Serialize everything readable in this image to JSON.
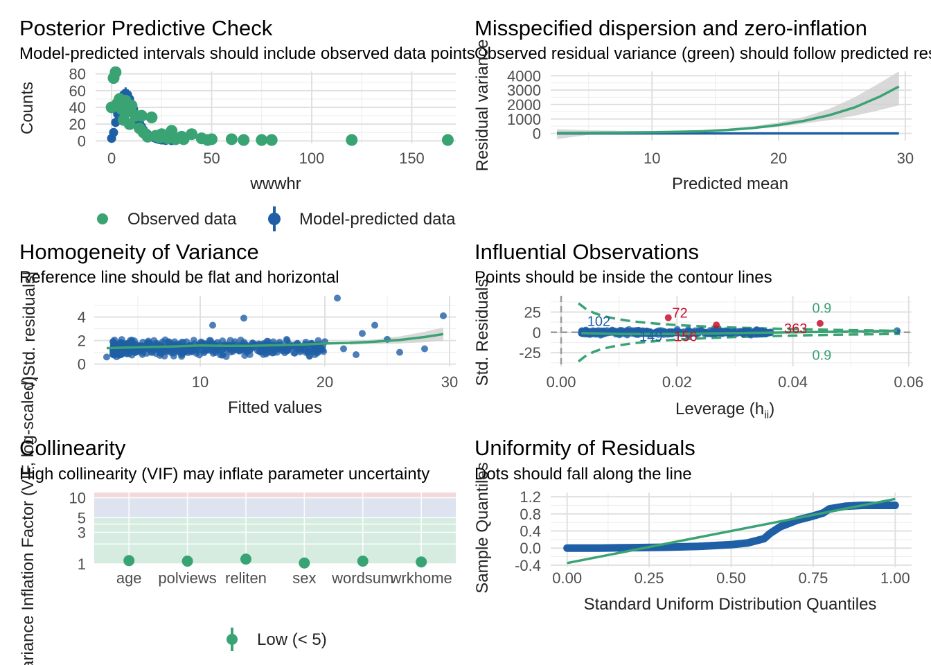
{
  "colors": {
    "observed": "#3aa374",
    "predicted": "#1f5fa6",
    "smooth": "#3aa374",
    "influential": "#c8102e",
    "ribbon": "#cfcfcf",
    "low_band": "#d6ece1",
    "mid_band": "#dde3ef",
    "high_band": "#f4d9dc"
  },
  "chart_data": [
    {
      "type": "scatter",
      "title": "Posterior Predictive Check",
      "subtitle": "Model-predicted intervals should include observed data points",
      "xlabel": "wwwhr",
      "ylabel": "Counts",
      "xlim": [
        -8,
        172
      ],
      "ylim": [
        -3,
        83
      ],
      "xticks": [
        0,
        50,
        100,
        150
      ],
      "yticks": [
        0,
        20,
        40,
        60,
        80
      ],
      "legend": {
        "position": "bottom",
        "observed": "Observed data",
        "predicted": "Model-predicted data"
      },
      "observed": [
        {
          "x": 0,
          "y": 40
        },
        {
          "x": 1,
          "y": 75
        },
        {
          "x": 2,
          "y": 82
        },
        {
          "x": 3,
          "y": 45
        },
        {
          "x": 4,
          "y": 50
        },
        {
          "x": 5,
          "y": 38
        },
        {
          "x": 6,
          "y": 25
        },
        {
          "x": 7,
          "y": 48
        },
        {
          "x": 8,
          "y": 35
        },
        {
          "x": 9,
          "y": 20
        },
        {
          "x": 10,
          "y": 42
        },
        {
          "x": 12,
          "y": 30
        },
        {
          "x": 14,
          "y": 15
        },
        {
          "x": 15,
          "y": 30
        },
        {
          "x": 16,
          "y": 10
        },
        {
          "x": 18,
          "y": 5
        },
        {
          "x": 20,
          "y": 28
        },
        {
          "x": 22,
          "y": 6
        },
        {
          "x": 24,
          "y": 4
        },
        {
          "x": 25,
          "y": 8
        },
        {
          "x": 28,
          "y": 3
        },
        {
          "x": 30,
          "y": 12
        },
        {
          "x": 32,
          "y": 2
        },
        {
          "x": 35,
          "y": 5
        },
        {
          "x": 36,
          "y": 2
        },
        {
          "x": 40,
          "y": 8
        },
        {
          "x": 45,
          "y": 3
        },
        {
          "x": 48,
          "y": 1
        },
        {
          "x": 50,
          "y": 2
        },
        {
          "x": 60,
          "y": 2
        },
        {
          "x": 66,
          "y": 1
        },
        {
          "x": 75,
          "y": 1
        },
        {
          "x": 80,
          "y": 1
        },
        {
          "x": 120,
          "y": 1
        },
        {
          "x": 168,
          "y": 1
        }
      ],
      "predicted": [
        {
          "x": 0,
          "y": 3
        },
        {
          "x": 1,
          "y": 10
        },
        {
          "x": 2,
          "y": 22
        },
        {
          "x": 3,
          "y": 32
        },
        {
          "x": 4,
          "y": 42
        },
        {
          "x": 5,
          "y": 50
        },
        {
          "x": 6,
          "y": 55
        },
        {
          "x": 7,
          "y": 57
        },
        {
          "x": 8,
          "y": 55
        },
        {
          "x": 9,
          "y": 50
        },
        {
          "x": 10,
          "y": 44
        },
        {
          "x": 11,
          "y": 38
        },
        {
          "x": 12,
          "y": 32
        },
        {
          "x": 13,
          "y": 26
        },
        {
          "x": 14,
          "y": 21
        },
        {
          "x": 15,
          "y": 17
        },
        {
          "x": 16,
          "y": 13
        },
        {
          "x": 17,
          "y": 10
        },
        {
          "x": 18,
          "y": 8
        },
        {
          "x": 19,
          "y": 6
        },
        {
          "x": 20,
          "y": 5
        },
        {
          "x": 21,
          "y": 4
        },
        {
          "x": 22,
          "y": 3
        },
        {
          "x": 23,
          "y": 2
        },
        {
          "x": 24,
          "y": 1.5
        },
        {
          "x": 25,
          "y": 1
        },
        {
          "x": 27,
          "y": 0.5
        },
        {
          "x": 30,
          "y": 0.3
        }
      ]
    },
    {
      "type": "line",
      "title": "Misspecified dispersion and zero-inflation",
      "subtitle": "Observed residual variance (green) should follow predicted residual variance (blue)",
      "xlabel": "Predicted mean",
      "ylabel": "Residual variance",
      "xlim": [
        2,
        30.5
      ],
      "ylim": [
        -500,
        4300
      ],
      "xticks": [
        10,
        20,
        30
      ],
      "yticks": [
        0,
        1000,
        2000,
        3000,
        4000
      ],
      "series": [
        {
          "role": "observed",
          "x": [
            2.5,
            5,
            8,
            10,
            12,
            14,
            16,
            18,
            20,
            22,
            24,
            26,
            28,
            29.5
          ],
          "y": [
            30,
            40,
            60,
            80,
            110,
            150,
            240,
            380,
            580,
            870,
            1260,
            1800,
            2560,
            3250
          ]
        },
        {
          "role": "predicted",
          "x": [
            2.5,
            29.5
          ],
          "y": [
            0,
            0
          ]
        }
      ],
      "ribbon": {
        "x": [
          2.5,
          5,
          8,
          10,
          12,
          14,
          16,
          18,
          20,
          22,
          24,
          26,
          28,
          29.5
        ],
        "lower": [
          -400,
          -100,
          0,
          30,
          60,
          100,
          180,
          300,
          460,
          680,
          920,
          1220,
          1620,
          1950
        ],
        "upper": [
          300,
          220,
          180,
          160,
          180,
          240,
          340,
          500,
          760,
          1140,
          1700,
          2500,
          3500,
          4300
        ]
      }
    },
    {
      "type": "scatter",
      "title": "Homogeneity of Variance",
      "subtitle": "Reference line should be flat and horizontal",
      "xlabel": "Fitted values",
      "ylabel": "√|Std. residuals|",
      "xlim": [
        1.5,
        30.5
      ],
      "ylim": [
        -0.2,
        5.8
      ],
      "xticks": [
        10,
        20,
        30
      ],
      "yticks": [
        0,
        2,
        4
      ],
      "smooth": {
        "x": [
          2.5,
          4,
          6,
          8,
          10,
          12,
          14,
          16,
          18,
          20,
          22,
          24,
          26,
          28,
          29.5
        ],
        "y": [
          1.35,
          1.4,
          1.45,
          1.5,
          1.58,
          1.55,
          1.55,
          1.6,
          1.65,
          1.75,
          1.8,
          1.9,
          2.05,
          2.3,
          2.55
        ]
      },
      "smooth_band_upper": {
        "x": [
          22,
          24,
          26,
          28,
          29.5
        ],
        "y": [
          1.95,
          2.1,
          2.35,
          2.75,
          3.1
        ]
      },
      "smooth_band_lower": {
        "x": [
          22,
          24,
          26,
          28,
          29.5
        ],
        "y": [
          1.65,
          1.7,
          1.75,
          1.85,
          2.0
        ]
      },
      "highlight_points": [
        {
          "x": 29.5,
          "y": 4.1
        },
        {
          "x": 21,
          "y": 5.6
        },
        {
          "x": 24,
          "y": 3.3
        },
        {
          "x": 13.5,
          "y": 3.9
        },
        {
          "x": 11,
          "y": 3.3
        },
        {
          "x": 25,
          "y": 2.1
        },
        {
          "x": 26,
          "y": 1.0
        },
        {
          "x": 22.5,
          "y": 0.8
        },
        {
          "x": 21.5,
          "y": 1.3
        },
        {
          "x": 2.5,
          "y": 0.6
        },
        {
          "x": 28,
          "y": 1.3
        },
        {
          "x": 23,
          "y": 2.6
        },
        {
          "x": 20,
          "y": 1.9
        }
      ]
    },
    {
      "type": "scatter",
      "title": "Influential Observations",
      "subtitle": "Points should be inside the contour lines",
      "xlabel": "Leverage (hii)",
      "ylabel": "Std. Residuals",
      "xlim": [
        -0.0018,
        0.0605
      ],
      "ylim": [
        -42,
        45
      ],
      "xticks": [
        "0.00",
        "0.02",
        "0.04",
        "0.06"
      ],
      "xtick_values": [
        0,
        0.02,
        0.04,
        0.06
      ],
      "yticks": [
        "-25",
        "0",
        "25"
      ],
      "ytick_values": [
        -25,
        0,
        25
      ],
      "contour_label": "0.9",
      "labels": [
        {
          "text": "72",
          "x": 0.0205,
          "y": 24,
          "influential": true
        },
        {
          "text": "102",
          "x": 0.0065,
          "y": 14,
          "influential": false
        },
        {
          "text": "149",
          "x": 0.0155,
          "y": -5,
          "influential": false
        },
        {
          "text": "156",
          "x": 0.0215,
          "y": -5,
          "influential": true
        },
        {
          "text": "363",
          "x": 0.0405,
          "y": 5,
          "influential": true
        }
      ],
      "influential_points": [
        {
          "x": 0.0185,
          "y": 18
        },
        {
          "x": 0.0268,
          "y": 9
        },
        {
          "x": 0.0447,
          "y": 11
        }
      ],
      "smooth": {
        "x": [
          0.0035,
          0.01,
          0.02,
          0.03,
          0.04,
          0.05,
          0.058
        ],
        "y": [
          -1,
          -2,
          -2,
          -1,
          0,
          1,
          2
        ]
      }
    },
    {
      "type": "scatter",
      "title": "Collinearity",
      "subtitle": "High collinearity (VIF) may inflate parameter uncertainty",
      "xlabel": "",
      "ylabel": "Variance Inflation Factor (VIF, log-scaled)",
      "categories": [
        "age",
        "polviews",
        "reliten",
        "sex",
        "wordsum",
        "wrkhome"
      ],
      "values": [
        1.12,
        1.1,
        1.18,
        1.03,
        1.1,
        1.07
      ],
      "ylim_log": [
        1,
        12
      ],
      "yticks": [
        1,
        3,
        5,
        10
      ],
      "ytick_labels": [
        "1",
        "3",
        "5",
        "10"
      ],
      "extra_ticks": [
        2,
        4
      ],
      "legend": {
        "position": "bottom",
        "label": "Low (< 5)"
      }
    },
    {
      "type": "line",
      "title": "Uniformity of Residuals",
      "subtitle": "Dots should fall along the line",
      "xlabel": "Standard Uniform Distribution Quantiles",
      "ylabel": "Sample Quantiles",
      "xlim": [
        -0.05,
        1.05
      ],
      "ylim": [
        -0.45,
        1.3
      ],
      "xticks": [
        "0.00",
        "0.25",
        "0.50",
        "0.75",
        "1.00"
      ],
      "xtick_values": [
        0,
        0.25,
        0.5,
        0.75,
        1
      ],
      "yticks": [
        "-0.4",
        "0.0",
        "0.4",
        "0.8",
        "1.2"
      ],
      "ytick_values": [
        -0.4,
        0,
        0.4,
        0.8,
        1.2
      ],
      "reference": {
        "x": [
          0,
          1
        ],
        "y": [
          -0.35,
          1.15
        ]
      },
      "sample": {
        "x": [
          0,
          0.1,
          0.2,
          0.3,
          0.4,
          0.5,
          0.55,
          0.6,
          0.62,
          0.65,
          0.7,
          0.75,
          0.78,
          0.8,
          0.85,
          0.9,
          0.95,
          1.0
        ],
        "y": [
          0,
          0.0,
          0.01,
          0.02,
          0.04,
          0.08,
          0.12,
          0.22,
          0.35,
          0.5,
          0.65,
          0.75,
          0.82,
          0.92,
          0.98,
          1.0,
          1.0,
          1.0
        ]
      }
    }
  ]
}
